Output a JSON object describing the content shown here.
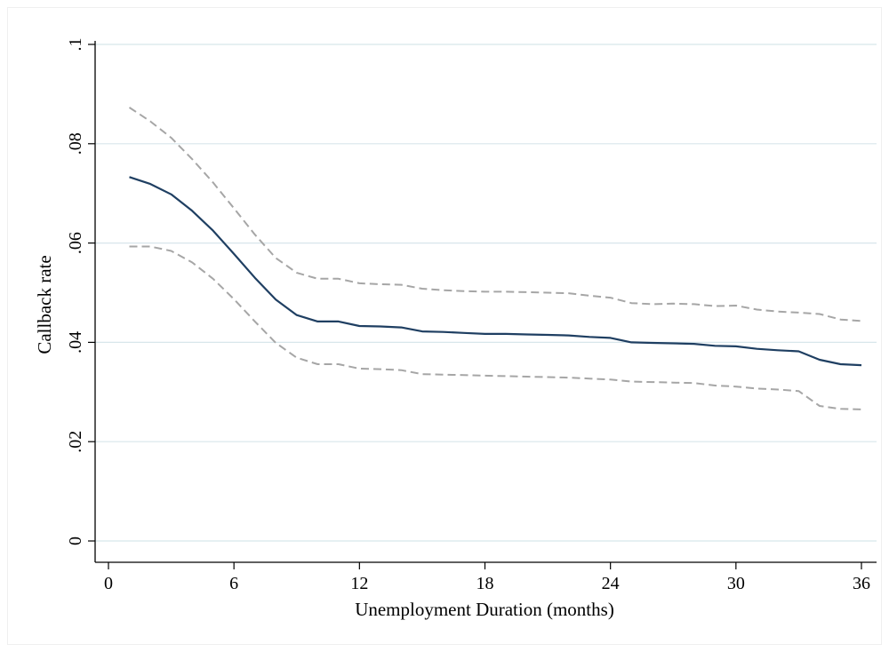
{
  "chart_data": {
    "type": "line",
    "title": "",
    "xlabel": "Unemployment Duration (months)",
    "ylabel": "Callback rate",
    "xlim": [
      0,
      36
    ],
    "ylim": [
      0,
      0.1
    ],
    "xticks": [
      0,
      6,
      12,
      18,
      24,
      30,
      36
    ],
    "xtick_labels": [
      "0",
      "6",
      "12",
      "18",
      "24",
      "30",
      "36"
    ],
    "yticks": [
      0,
      0.02,
      0.04,
      0.06,
      0.08,
      0.1
    ],
    "ytick_labels": [
      "0",
      ".02",
      ".04",
      ".06",
      ".08",
      ".1"
    ],
    "grid": "horizontal",
    "legend": "none",
    "colors": {
      "estimate": "#1f3f62",
      "bounds": "#a6a6a6",
      "grid": "#d8e6eb",
      "axis": "#000000"
    },
    "x": [
      1,
      2,
      3,
      4,
      5,
      6,
      7,
      8,
      9,
      10,
      11,
      12,
      13,
      14,
      15,
      16,
      17,
      18,
      19,
      20,
      21,
      22,
      23,
      24,
      25,
      26,
      27,
      28,
      29,
      30,
      31,
      32,
      33,
      34,
      35,
      36
    ],
    "series": [
      {
        "role": "estimate",
        "style": "solid",
        "values": [
          0.0733,
          0.0719,
          0.0698,
          0.0665,
          0.0625,
          0.0578,
          0.053,
          0.0486,
          0.0455,
          0.0442,
          0.0442,
          0.0433,
          0.0432,
          0.043,
          0.0422,
          0.0421,
          0.0419,
          0.0417,
          0.0417,
          0.0416,
          0.0415,
          0.0414,
          0.0411,
          0.0409,
          0.04,
          0.0399,
          0.0398,
          0.0397,
          0.0393,
          0.0392,
          0.0387,
          0.0384,
          0.0382,
          0.0365,
          0.0356,
          0.0354
        ]
      },
      {
        "role": "upper-bound",
        "style": "dashed",
        "values": [
          0.0873,
          0.0845,
          0.0812,
          0.0769,
          0.0722,
          0.067,
          0.0617,
          0.057,
          0.054,
          0.0528,
          0.0528,
          0.0519,
          0.0517,
          0.0516,
          0.0508,
          0.0505,
          0.0503,
          0.0502,
          0.0502,
          0.0501,
          0.05,
          0.0499,
          0.0494,
          0.049,
          0.0479,
          0.0477,
          0.0478,
          0.0477,
          0.0473,
          0.0474,
          0.0466,
          0.0462,
          0.046,
          0.0457,
          0.0446,
          0.0443
        ]
      },
      {
        "role": "lower-bound",
        "style": "dashed",
        "values": [
          0.0593,
          0.0593,
          0.0584,
          0.0561,
          0.0528,
          0.0487,
          0.0442,
          0.0399,
          0.0369,
          0.0356,
          0.0356,
          0.0347,
          0.0346,
          0.0344,
          0.0336,
          0.0335,
          0.0334,
          0.0333,
          0.0332,
          0.0331,
          0.033,
          0.0329,
          0.0327,
          0.0325,
          0.0321,
          0.032,
          0.0319,
          0.0318,
          0.0313,
          0.0311,
          0.0307,
          0.0305,
          0.0302,
          0.0272,
          0.0266,
          0.0265
        ]
      }
    ]
  }
}
